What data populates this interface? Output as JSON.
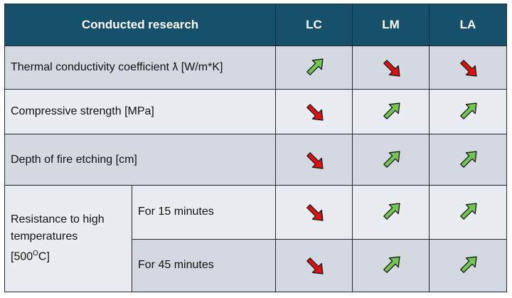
{
  "header": {
    "research": "Conducted research",
    "lc": "LC",
    "lm": "LM",
    "la": "LA"
  },
  "rows": [
    {
      "label": "Thermal conductivity coefficient ƛ [W/m*K]",
      "lc": "up",
      "lm": "down",
      "la": "down"
    },
    {
      "label": "Compressive strength [MPa]",
      "lc": "down",
      "lm": "up",
      "la": "up"
    },
    {
      "label": "Depth of fire etching [cm]",
      "lc": "down",
      "lm": "up",
      "la": "up"
    }
  ],
  "resistance": {
    "label_line1": "Resistance to high",
    "label_line2": "temperatures",
    "label_line3_pre": "[500",
    "label_line3_sup": "O",
    "label_line3_post": "C]",
    "sub": [
      {
        "label": "For 15 minutes",
        "lc": "down",
        "lm": "up",
        "la": "up"
      },
      {
        "label": "For 45 minutes",
        "lc": "down",
        "lm": "up",
        "la": "up"
      }
    ]
  },
  "colors": {
    "up": "#70c850",
    "down": "#e01010",
    "header": "#17506b"
  },
  "icons": {
    "up": "up-right-arrow-icon",
    "down": "down-right-arrow-icon"
  }
}
